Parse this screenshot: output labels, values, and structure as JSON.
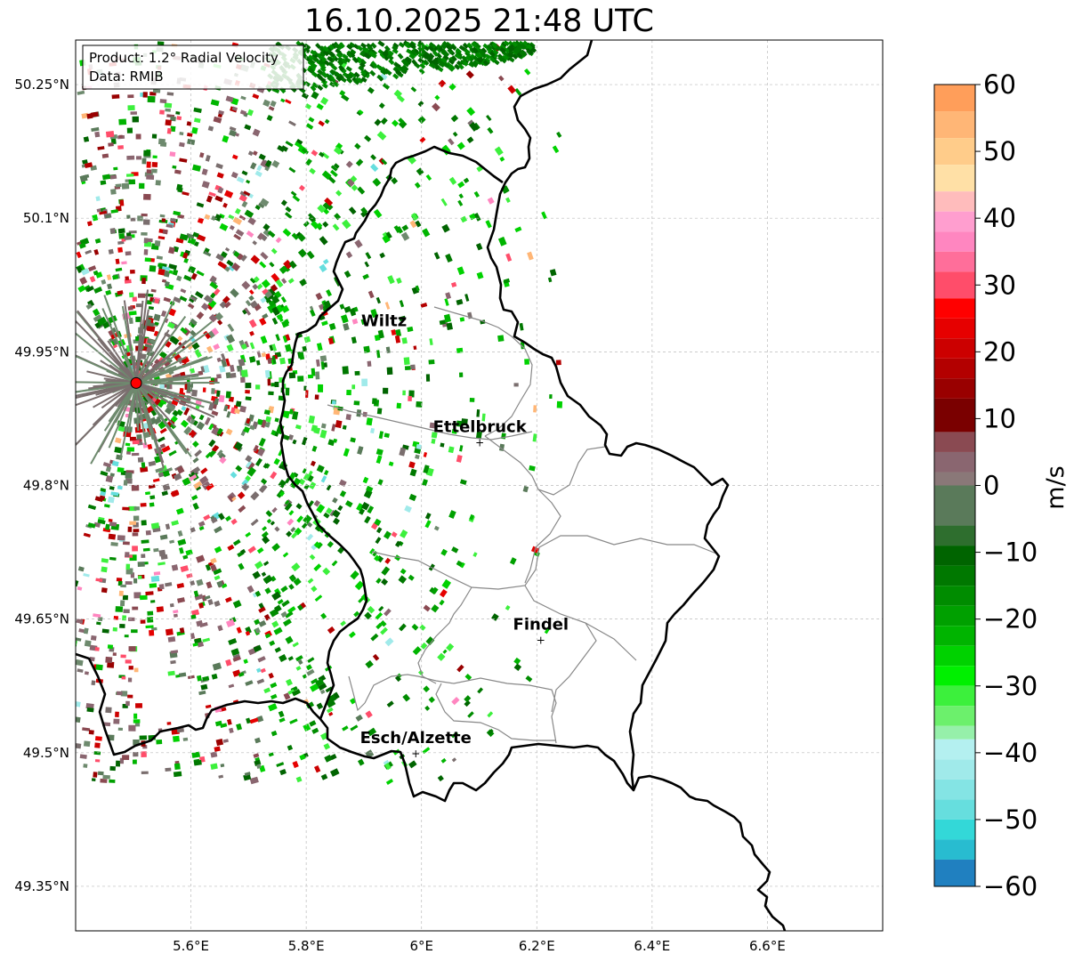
{
  "title": "16.10.2025 21:48 UTC",
  "info_box": {
    "product": "Product: 1.2° Radial Velocity",
    "data": "Data: RMIB"
  },
  "axes": {
    "lon_range": [
      5.4,
      6.8
    ],
    "lat_range": [
      49.3,
      50.3
    ],
    "lon_ticks": [
      {
        "value": 5.6,
        "label": "5.6°E"
      },
      {
        "value": 5.8,
        "label": "5.8°E"
      },
      {
        "value": 6.0,
        "label": "6°E"
      },
      {
        "value": 6.2,
        "label": "6.2°E"
      },
      {
        "value": 6.4,
        "label": "6.4°E"
      },
      {
        "value": 6.6,
        "label": "6.6°E"
      }
    ],
    "lat_ticks": [
      {
        "value": 50.25,
        "label": "50.25°N"
      },
      {
        "value": 50.1,
        "label": "50.1°N"
      },
      {
        "value": 49.95,
        "label": "49.95°N"
      },
      {
        "value": 49.8,
        "label": "49.8°N"
      },
      {
        "value": 49.65,
        "label": "49.65°N"
      },
      {
        "value": 49.5,
        "label": "49.5°N"
      },
      {
        "value": 49.35,
        "label": "49.35°N"
      }
    ]
  },
  "radar_site": {
    "lon": 5.505,
    "lat": 49.915,
    "color": "#ff0000"
  },
  "cities": [
    {
      "name": "Wiltz",
      "lon": 5.935,
      "lat": 49.967,
      "marker": false
    },
    {
      "name": "Ettelbruck",
      "lon": 6.101,
      "lat": 49.848,
      "marker": true
    },
    {
      "name": "Findel",
      "lon": 6.207,
      "lat": 49.626,
      "marker": true
    },
    {
      "name": "Esch/Alzette",
      "lon": 5.99,
      "lat": 49.499,
      "marker": true
    }
  ],
  "colorbar": {
    "label": "m/s",
    "min": -60,
    "max": 60,
    "ticks": [
      {
        "value": 60,
        "label": "60"
      },
      {
        "value": 50,
        "label": "50"
      },
      {
        "value": 40,
        "label": "40"
      },
      {
        "value": 30,
        "label": "30"
      },
      {
        "value": 20,
        "label": "20"
      },
      {
        "value": 10,
        "label": "10"
      },
      {
        "value": 0,
        "label": "0"
      },
      {
        "value": -10,
        "label": "−10"
      },
      {
        "value": -20,
        "label": "−20"
      },
      {
        "value": -30,
        "label": "−30"
      },
      {
        "value": -40,
        "label": "−40"
      },
      {
        "value": -50,
        "label": "−50"
      },
      {
        "value": -60,
        "label": "−60"
      }
    ],
    "stops": [
      {
        "from": 56,
        "to": 60,
        "color": "#ff9e5a"
      },
      {
        "from": 52,
        "to": 56,
        "color": "#ffb676"
      },
      {
        "from": 48,
        "to": 52,
        "color": "#ffcc8a"
      },
      {
        "from": 44,
        "to": 48,
        "color": "#ffe0a6"
      },
      {
        "from": 41,
        "to": 44,
        "color": "#ffbcbc"
      },
      {
        "from": 38,
        "to": 41,
        "color": "#ff9ecf"
      },
      {
        "from": 35,
        "to": 38,
        "color": "#ff86c0"
      },
      {
        "from": 32,
        "to": 35,
        "color": "#ff6e9a"
      },
      {
        "from": 28,
        "to": 32,
        "color": "#ff4d6a"
      },
      {
        "from": 25,
        "to": 28,
        "color": "#ff0000"
      },
      {
        "from": 22,
        "to": 25,
        "color": "#e60000"
      },
      {
        "from": 19,
        "to": 22,
        "color": "#cc0000"
      },
      {
        "from": 16,
        "to": 19,
        "color": "#b30000"
      },
      {
        "from": 13,
        "to": 16,
        "color": "#990000"
      },
      {
        "from": 8,
        "to": 13,
        "color": "#7a0000"
      },
      {
        "from": 5,
        "to": 8,
        "color": "#8a4a52"
      },
      {
        "from": 2,
        "to": 5,
        "color": "#8a6670"
      },
      {
        "from": 0,
        "to": 2,
        "color": "#8a7878"
      },
      {
        "from": -3,
        "to": 0,
        "color": "#6e8a6e"
      },
      {
        "from": -6,
        "to": 0,
        "color": "#5a7a5a"
      },
      {
        "from": -9,
        "to": -6,
        "color": "#2e6e2e"
      },
      {
        "from": -12,
        "to": -9,
        "color": "#006400"
      },
      {
        "from": -15,
        "to": -12,
        "color": "#007800"
      },
      {
        "from": -18,
        "to": -15,
        "color": "#008c00"
      },
      {
        "from": -21,
        "to": -18,
        "color": "#00a000"
      },
      {
        "from": -24,
        "to": -21,
        "color": "#00b400"
      },
      {
        "from": -27,
        "to": -24,
        "color": "#00d200"
      },
      {
        "from": -30,
        "to": -27,
        "color": "#00f000"
      },
      {
        "from": -33,
        "to": -30,
        "color": "#3cf03c"
      },
      {
        "from": -36,
        "to": -33,
        "color": "#6cf06c"
      },
      {
        "from": -38,
        "to": -36,
        "color": "#96f0aa"
      },
      {
        "from": -41,
        "to": -38,
        "color": "#b4f0f0"
      },
      {
        "from": -44,
        "to": -41,
        "color": "#a0eaea"
      },
      {
        "from": -47,
        "to": -44,
        "color": "#84e4e4"
      },
      {
        "from": -50,
        "to": -47,
        "color": "#66dede"
      },
      {
        "from": -53,
        "to": -50,
        "color": "#33d8d8"
      },
      {
        "from": -56,
        "to": -53,
        "color": "#28bcd0"
      },
      {
        "from": -60,
        "to": -56,
        "color": "#2080c0"
      }
    ]
  },
  "colors": {
    "border": "#000000",
    "canton_lines": "#888888",
    "grid": "#bbbbbb"
  }
}
